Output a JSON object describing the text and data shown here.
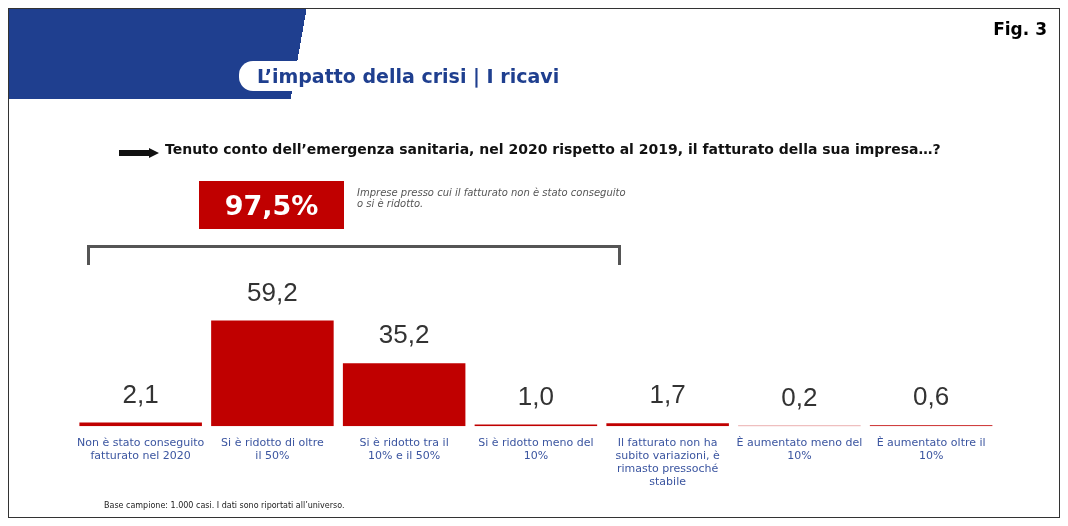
{
  "chart_data": {
    "type": "bar",
    "title": "L’impatto della crisi | I ricavi",
    "subtitle": "Tenuto conto dell’emergenza sanitaria, nel 2020 rispetto al 2019, il fatturato della sua impresa…?",
    "categories": [
      "Non è stato conseguito fatturato nel 2020",
      "Si è ridotto di oltre il 50%",
      "Si è ridotto tra il 10% e il 50%",
      "Si è ridotto meno del 10%",
      "Il fatturato non ha subito variazioni, è rimasto pressoché stabile",
      "È aumentato meno del 10%",
      "È aumentato oltre il 10%"
    ],
    "values": [
      2.1,
      59.2,
      35.2,
      1.0,
      1.7,
      0.2,
      0.6
    ],
    "value_labels": [
      "2,1",
      "59,2",
      "35,2",
      "1,0",
      "1,7",
      "0,2",
      "0,6"
    ],
    "color": "#c00000",
    "grid": false,
    "legend": false,
    "annotations": [
      "Fig. 3",
      "97,5%",
      "Imprese presso cui il fatturato non è stato conseguito o si è ridotto.",
      "Base campione: 1.000 casi. I dati sono riportati all’universo."
    ]
  }
}
